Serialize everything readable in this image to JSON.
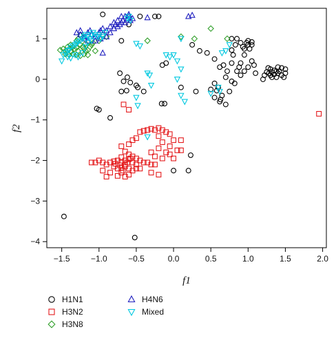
{
  "chart_data": {
    "type": "scatter",
    "xlabel": "f1",
    "ylabel": "f2",
    "xlim": [
      -1.7,
      2.05
    ],
    "ylim": [
      -4.15,
      1.75
    ],
    "xticks": [
      -1.5,
      -1.0,
      -0.5,
      0.0,
      0.5,
      1.0,
      1.5,
      2.0
    ],
    "xtick_labels": [
      "−1.5",
      "−1.0",
      "−0.5",
      "0.0",
      "0.5",
      "1.0",
      "1.5",
      "2.0"
    ],
    "yticks": [
      1,
      0,
      -1,
      -2,
      -3,
      -4
    ],
    "ytick_labels": [
      "1",
      "0",
      "−1",
      "−2",
      "−3",
      "−4"
    ],
    "grid": false,
    "legend_position": "bottom-left",
    "series": [
      {
        "name": "H1N1",
        "marker": "circle",
        "color": "#000000",
        "points": [
          [
            -0.95,
            1.6
          ],
          [
            -0.45,
            1.55
          ],
          [
            -0.6,
            1.35
          ],
          [
            -0.7,
            0.95
          ],
          [
            -0.72,
            0.15
          ],
          [
            -0.62,
            0.05
          ],
          [
            -0.67,
            -0.05
          ],
          [
            -0.58,
            -0.08
          ],
          [
            -0.63,
            -0.28
          ],
          [
            -0.7,
            -0.3
          ],
          [
            -0.5,
            -0.15
          ],
          [
            -0.48,
            -0.2
          ],
          [
            -0.85,
            -0.95
          ],
          [
            -1.0,
            -0.75
          ],
          [
            -1.03,
            -0.72
          ],
          [
            -0.1,
            0.4
          ],
          [
            -0.15,
            0.35
          ],
          [
            -0.12,
            -0.6
          ],
          [
            -0.16,
            -0.6
          ],
          [
            0.0,
            -2.25
          ],
          [
            0.2,
            -2.25
          ],
          [
            0.23,
            -1.87
          ],
          [
            -1.47,
            -3.38
          ],
          [
            -0.52,
            -3.9
          ],
          [
            -0.4,
            -0.3
          ],
          [
            0.1,
            -0.2
          ],
          [
            0.3,
            -0.3
          ],
          [
            0.55,
            0.5
          ],
          [
            0.62,
            0.3
          ],
          [
            0.67,
            0.35
          ],
          [
            0.55,
            -0.1
          ],
          [
            0.6,
            -0.2
          ],
          [
            0.5,
            -0.25
          ],
          [
            0.58,
            -0.28
          ],
          [
            0.65,
            -0.4
          ],
          [
            0.62,
            -0.55
          ],
          [
            0.55,
            -0.45
          ],
          [
            0.7,
            -0.62
          ],
          [
            0.63,
            -0.5
          ],
          [
            0.75,
            -0.3
          ],
          [
            0.78,
            -0.05
          ],
          [
            0.82,
            -0.1
          ],
          [
            0.7,
            0.05
          ],
          [
            0.72,
            0.2
          ],
          [
            0.78,
            0.4
          ],
          [
            0.8,
            0.6
          ],
          [
            0.78,
            0.72
          ],
          [
            0.83,
            0.85
          ],
          [
            0.85,
            1.0
          ],
          [
            0.78,
            1.0
          ],
          [
            0.9,
            0.9
          ],
          [
            0.93,
            0.8
          ],
          [
            0.95,
            0.75
          ],
          [
            0.98,
            0.9
          ],
          [
            1.0,
            0.85
          ],
          [
            1.02,
            0.75
          ],
          [
            1.05,
            0.85
          ],
          [
            1.05,
            0.92
          ],
          [
            1.0,
            0.95
          ],
          [
            0.95,
            0.6
          ],
          [
            0.9,
            0.4
          ],
          [
            0.88,
            0.3
          ],
          [
            0.95,
            0.2
          ],
          [
            1.0,
            0.3
          ],
          [
            1.05,
            0.45
          ],
          [
            1.08,
            0.35
          ],
          [
            1.1,
            0.15
          ],
          [
            0.9,
            0.1
          ],
          [
            0.85,
            0.2
          ],
          [
            1.2,
            0.0
          ],
          [
            1.22,
            0.1
          ],
          [
            1.3,
            0.25
          ],
          [
            1.25,
            0.18
          ],
          [
            1.28,
            0.15
          ],
          [
            1.3,
            0.1
          ],
          [
            1.32,
            0.18
          ],
          [
            1.35,
            0.22
          ],
          [
            1.35,
            0.12
          ],
          [
            1.38,
            0.2
          ],
          [
            1.38,
            0.05
          ],
          [
            1.4,
            0.15
          ],
          [
            1.42,
            0.2
          ],
          [
            1.45,
            0.1
          ],
          [
            1.48,
            0.05
          ],
          [
            1.5,
            0.15
          ],
          [
            1.5,
            0.25
          ],
          [
            1.45,
            0.28
          ],
          [
            1.32,
            0.05
          ],
          [
            1.4,
            0.3
          ],
          [
            1.27,
            0.28
          ],
          [
            0.35,
            0.7
          ],
          [
            0.45,
            0.65
          ],
          [
            0.25,
            0.85
          ],
          [
            -0.2,
            1.55
          ],
          [
            -0.25,
            1.55
          ]
        ]
      },
      {
        "name": "H3N2",
        "marker": "square",
        "color": "#e41a1c",
        "points": [
          [
            -0.67,
            -0.62
          ],
          [
            -0.6,
            -0.75
          ],
          [
            -0.4,
            -1.27
          ],
          [
            -0.35,
            -1.25
          ],
          [
            -0.3,
            -1.22
          ],
          [
            -0.25,
            -1.25
          ],
          [
            -0.2,
            -1.2
          ],
          [
            -0.15,
            -1.25
          ],
          [
            -0.1,
            -1.3
          ],
          [
            -0.05,
            -1.35
          ],
          [
            -0.2,
            -1.4
          ],
          [
            -0.45,
            -1.3
          ],
          [
            -0.5,
            -1.45
          ],
          [
            -0.55,
            -1.5
          ],
          [
            -0.6,
            -1.6
          ],
          [
            -0.7,
            -1.65
          ],
          [
            -0.65,
            -1.78
          ],
          [
            -0.6,
            -1.85
          ],
          [
            -0.55,
            -1.9
          ],
          [
            -0.5,
            -1.95
          ],
          [
            -0.45,
            -2.0
          ],
          [
            -0.4,
            -2.05
          ],
          [
            -0.35,
            -2.05
          ],
          [
            -0.3,
            -2.1
          ],
          [
            -0.25,
            -2.1
          ],
          [
            -0.6,
            -1.97
          ],
          [
            -0.65,
            -2.0
          ],
          [
            -0.7,
            -2.05
          ],
          [
            -0.75,
            -2.0
          ],
          [
            -0.8,
            -2.02
          ],
          [
            -0.85,
            -2.05
          ],
          [
            -0.9,
            -2.1
          ],
          [
            -0.95,
            -2.05
          ],
          [
            -1.0,
            -2.0
          ],
          [
            -1.05,
            -2.05
          ],
          [
            -1.1,
            -2.05
          ],
          [
            -0.8,
            -2.15
          ],
          [
            -0.75,
            -2.2
          ],
          [
            -0.7,
            -2.18
          ],
          [
            -0.65,
            -2.15
          ],
          [
            -0.6,
            -2.2
          ],
          [
            -0.55,
            -2.25
          ],
          [
            -0.5,
            -2.2
          ],
          [
            -0.45,
            -2.2
          ],
          [
            -0.6,
            -2.35
          ],
          [
            -0.65,
            -2.4
          ],
          [
            -0.7,
            -2.3
          ],
          [
            -0.75,
            -2.38
          ],
          [
            -0.85,
            -2.3
          ],
          [
            -0.9,
            -2.4
          ],
          [
            -0.95,
            -2.25
          ],
          [
            -0.55,
            -2.05
          ],
          [
            -0.5,
            -2.1
          ],
          [
            -0.65,
            -2.1
          ],
          [
            -0.7,
            -1.92
          ],
          [
            -0.58,
            -1.95
          ],
          [
            -0.62,
            -2.05
          ],
          [
            -0.68,
            -2.25
          ],
          [
            -0.72,
            -2.12
          ],
          [
            -0.78,
            -2.08
          ],
          [
            -0.05,
            -1.65
          ],
          [
            0.0,
            -1.5
          ],
          [
            -0.15,
            -1.55
          ],
          [
            0.05,
            -1.75
          ],
          [
            -0.1,
            -1.8
          ],
          [
            -0.2,
            -1.7
          ],
          [
            -0.3,
            -1.8
          ],
          [
            -0.25,
            -1.9
          ],
          [
            -0.15,
            -1.95
          ],
          [
            -0.3,
            -2.3
          ],
          [
            -0.2,
            -2.35
          ],
          [
            0.1,
            -1.5
          ],
          [
            0.1,
            -1.75
          ],
          [
            0.0,
            -1.95
          ],
          [
            -0.05,
            -1.85
          ],
          [
            1.95,
            -0.85
          ]
        ]
      },
      {
        "name": "H3N8",
        "marker": "diamond",
        "color": "#33a02c",
        "points": [
          [
            -1.52,
            0.72
          ],
          [
            -1.48,
            0.75
          ],
          [
            -1.45,
            0.7
          ],
          [
            -1.42,
            0.8
          ],
          [
            -1.4,
            0.75
          ],
          [
            -1.38,
            0.85
          ],
          [
            -1.35,
            0.8
          ],
          [
            -1.33,
            0.75
          ],
          [
            -1.3,
            0.78
          ],
          [
            -1.3,
            0.95
          ],
          [
            -1.28,
            1.0
          ],
          [
            -1.25,
            0.85
          ],
          [
            -1.22,
            0.8
          ],
          [
            -1.2,
            0.75
          ],
          [
            -1.18,
            0.7
          ],
          [
            -1.15,
            0.72
          ],
          [
            -1.12,
            0.8
          ],
          [
            -1.1,
            0.85
          ],
          [
            -1.45,
            0.62
          ],
          [
            -1.4,
            0.6
          ],
          [
            -1.35,
            0.62
          ],
          [
            -1.3,
            0.6
          ],
          [
            -1.25,
            0.58
          ],
          [
            -1.2,
            0.62
          ],
          [
            -1.15,
            0.6
          ],
          [
            -1.38,
            0.68
          ],
          [
            -1.28,
            0.7
          ],
          [
            -1.18,
            0.88
          ],
          [
            -1.22,
            1.02
          ],
          [
            -1.25,
            1.1
          ],
          [
            -0.95,
            1.1
          ],
          [
            -0.9,
            1.05
          ],
          [
            -1.0,
            0.95
          ],
          [
            -0.35,
            0.95
          ],
          [
            0.1,
            1.05
          ],
          [
            0.28,
            1.0
          ],
          [
            0.5,
            1.25
          ],
          [
            0.72,
            1.0
          ],
          [
            -1.05,
            0.7
          ],
          [
            -1.08,
            0.9
          ]
        ]
      },
      {
        "name": "H4N6",
        "marker": "triangle-up",
        "color": "#1f1fbf",
        "points": [
          [
            -1.3,
            1.15
          ],
          [
            -1.25,
            1.1
          ],
          [
            -1.2,
            1.05
          ],
          [
            -1.15,
            1.15
          ],
          [
            -1.12,
            1.2
          ],
          [
            -1.1,
            1.1
          ],
          [
            -1.05,
            1.05
          ],
          [
            -1.0,
            1.15
          ],
          [
            -0.98,
            1.2
          ],
          [
            -0.95,
            1.25
          ],
          [
            -0.9,
            1.2
          ],
          [
            -0.85,
            1.3
          ],
          [
            -0.8,
            1.25
          ],
          [
            -0.78,
            1.35
          ],
          [
            -0.75,
            1.3
          ],
          [
            -0.72,
            1.35
          ],
          [
            -0.7,
            1.4
          ],
          [
            -0.68,
            1.45
          ],
          [
            -0.65,
            1.4
          ],
          [
            -0.62,
            1.5
          ],
          [
            -0.6,
            1.55
          ],
          [
            -0.58,
            1.45
          ],
          [
            -0.55,
            1.5
          ],
          [
            -0.6,
            1.6
          ],
          [
            -0.65,
            1.55
          ],
          [
            -0.7,
            1.55
          ],
          [
            -0.85,
            1.15
          ],
          [
            -0.9,
            1.05
          ],
          [
            -0.98,
            1.0
          ],
          [
            -1.05,
            0.95
          ],
          [
            -1.15,
            0.95
          ],
          [
            -1.2,
            1.0
          ],
          [
            -1.25,
            1.2
          ],
          [
            -0.95,
            0.65
          ],
          [
            -0.35,
            1.52
          ],
          [
            0.2,
            1.55
          ],
          [
            0.25,
            1.58
          ],
          [
            -0.8,
            1.4
          ],
          [
            -0.75,
            1.45
          ]
        ]
      },
      {
        "name": "Mixed",
        "marker": "triangle-down",
        "color": "#00c8e0",
        "points": [
          [
            -1.5,
            0.45
          ],
          [
            -1.48,
            0.6
          ],
          [
            -1.45,
            0.65
          ],
          [
            -1.42,
            0.7
          ],
          [
            -1.4,
            0.72
          ],
          [
            -1.38,
            0.78
          ],
          [
            -1.35,
            0.82
          ],
          [
            -1.32,
            0.85
          ],
          [
            -1.3,
            0.88
          ],
          [
            -1.28,
            0.92
          ],
          [
            -1.25,
            0.95
          ],
          [
            -1.22,
            1.0
          ],
          [
            -1.2,
            1.05
          ],
          [
            -1.18,
            1.1
          ],
          [
            -1.15,
            1.05
          ],
          [
            -1.12,
            1.0
          ],
          [
            -1.1,
            1.1
          ],
          [
            -1.08,
            1.15
          ],
          [
            -1.05,
            1.1
          ],
          [
            -1.02,
            1.05
          ],
          [
            -1.0,
            1.1
          ],
          [
            -0.98,
            1.0
          ],
          [
            -0.95,
            1.05
          ],
          [
            -0.92,
            1.15
          ],
          [
            -1.32,
            0.6
          ],
          [
            -1.28,
            0.55
          ],
          [
            -1.22,
            0.65
          ],
          [
            -1.18,
            0.8
          ],
          [
            -1.15,
            0.9
          ],
          [
            -1.1,
            0.95
          ],
          [
            -1.38,
            0.52
          ],
          [
            -1.42,
            0.55
          ],
          [
            -0.6,
            1.55
          ],
          [
            -0.62,
            1.5
          ],
          [
            -0.58,
            1.45
          ],
          [
            -0.5,
            0.88
          ],
          [
            -0.45,
            0.82
          ],
          [
            -0.35,
            0.15
          ],
          [
            -0.32,
            0.1
          ],
          [
            -0.3,
            -0.15
          ],
          [
            -0.5,
            -0.45
          ],
          [
            -0.48,
            -0.65
          ],
          [
            -0.1,
            0.6
          ],
          [
            -0.05,
            0.55
          ],
          [
            0.05,
            0.45
          ],
          [
            0.1,
            0.25
          ],
          [
            0.1,
            -0.4
          ],
          [
            0.15,
            -0.55
          ],
          [
            0.05,
            0.0
          ],
          [
            0.0,
            0.6
          ],
          [
            0.1,
            1.0
          ],
          [
            0.5,
            -0.35
          ],
          [
            0.6,
            -0.2
          ],
          [
            0.62,
            -0.3
          ],
          [
            0.65,
            0.65
          ],
          [
            0.7,
            0.7
          ],
          [
            -0.35,
            -1.42
          ],
          [
            0.75,
            0.85
          ]
        ]
      }
    ]
  }
}
